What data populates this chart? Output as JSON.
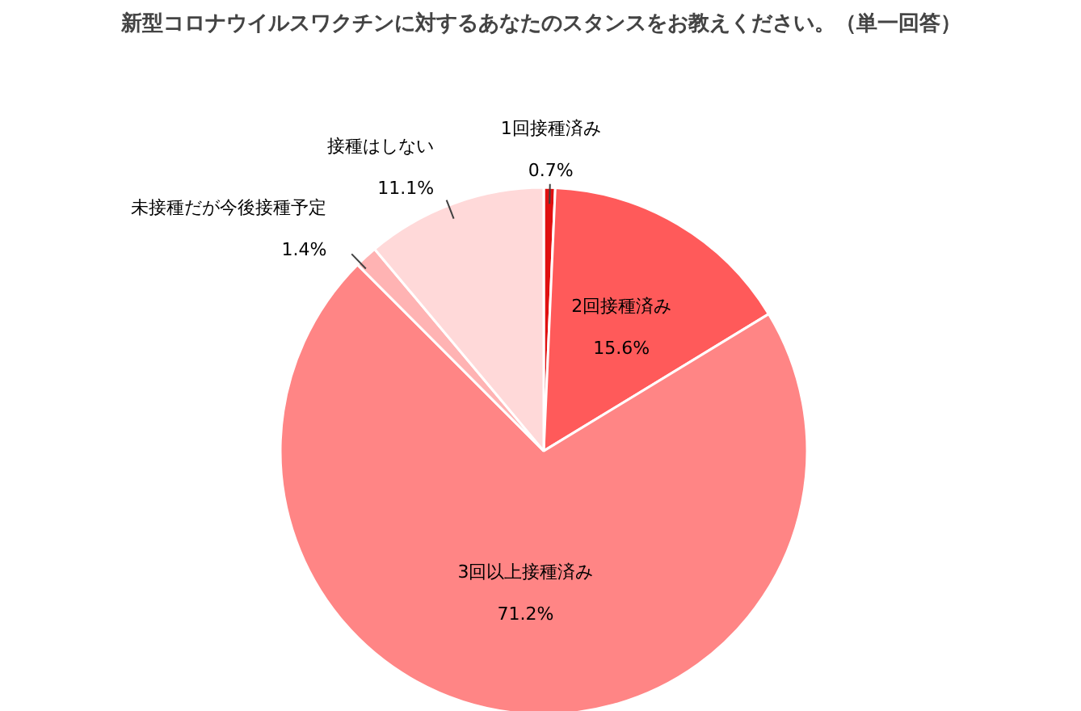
{
  "chart_data": {
    "type": "pie",
    "title": "新型コロナウイルスワクチンに対するあなたのスタンスをお教えください。（単一回答）",
    "categories": [
      "1回接種済み",
      "2回接種済み",
      "3回以上接種済み",
      "未接種だが今後接種予定",
      "接種はしない"
    ],
    "values": [
      0.7,
      15.6,
      71.2,
      1.4,
      11.1
    ],
    "colors": [
      "#e01010",
      "#ff5a5a",
      "#ff8585",
      "#ffb3b3",
      "#ffd9d9"
    ],
    "value_labels": [
      "0.7%",
      "15.6%",
      "71.2%",
      "1.4%",
      "11.1%"
    ]
  }
}
